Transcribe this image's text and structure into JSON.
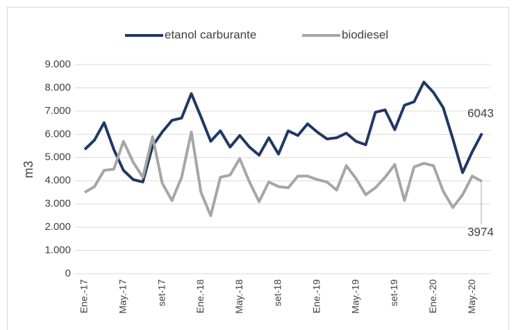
{
  "chart_data": {
    "type": "line",
    "y_axis_label": "m3",
    "categories": [
      "Ene.-17",
      null,
      null,
      null,
      "May.-17",
      null,
      null,
      null,
      "set-17",
      null,
      null,
      null,
      "Ene.-18",
      null,
      null,
      null,
      "May.-18",
      null,
      null,
      null,
      "set-18",
      null,
      null,
      null,
      "Ene.-19",
      null,
      null,
      null,
      "May.-19",
      null,
      null,
      null,
      "set-19",
      null,
      null,
      null,
      "Ene.-20",
      null,
      null,
      null,
      "May.-20",
      null
    ],
    "series": [
      {
        "name": "etanol carburante",
        "color": "#203864",
        "values": [
          5350,
          5750,
          6500,
          5350,
          4450,
          4050,
          3950,
          5500,
          6100,
          6600,
          6700,
          7750,
          6750,
          5700,
          6150,
          5450,
          5950,
          5450,
          5100,
          5850,
          5150,
          6150,
          5950,
          6450,
          6100,
          5800,
          5850,
          6050,
          5700,
          5550,
          6950,
          7050,
          6200,
          7250,
          7400,
          8250,
          7800,
          7150,
          5800,
          4350,
          5250,
          6043
        ]
      },
      {
        "name": "biodiesel",
        "color": "#a6a6a6",
        "values": [
          3500,
          3750,
          4450,
          4500,
          5700,
          4800,
          4150,
          5900,
          3900,
          3150,
          4150,
          6100,
          3500,
          2500,
          4150,
          4250,
          4950,
          3950,
          3100,
          3950,
          3750,
          3700,
          4200,
          4200,
          4050,
          3950,
          3600,
          4650,
          4100,
          3400,
          3700,
          4150,
          4700,
          3150,
          4600,
          4750,
          4650,
          3550,
          2850,
          3400,
          4200,
          3974
        ]
      }
    ],
    "ylim": [
      0,
      9000
    ],
    "yticks": [
      0,
      {
        "value": 1000,
        "label": "1.000"
      },
      {
        "value": 2000,
        "label": "2.000"
      },
      {
        "value": 3000,
        "label": "3.000"
      },
      {
        "value": 4000,
        "label": "4.000"
      },
      {
        "value": 5000,
        "label": "5.000"
      },
      {
        "value": 6000,
        "label": "6.000"
      },
      {
        "value": 7000,
        "label": "7.000"
      },
      {
        "value": 8000,
        "label": "8.000"
      },
      {
        "value": 9000,
        "label": "9.000"
      }
    ],
    "grid": true,
    "legend": "top",
    "last_point_labels": true
  }
}
